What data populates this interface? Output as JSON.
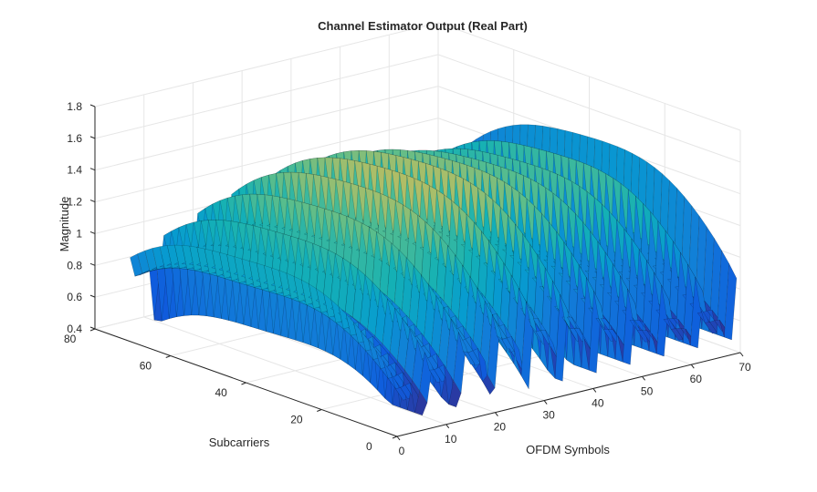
{
  "chart_data": {
    "type": "surface",
    "title": "Channel Estimator Output (Real Part)",
    "xlabel": "OFDM Symbols",
    "ylabel": "Subcarriers",
    "zlabel": "Magnitude",
    "xlim": [
      0,
      70
    ],
    "ylim": [
      0,
      80
    ],
    "zlim": [
      0.4,
      1.8
    ],
    "xticks": [
      0,
      10,
      20,
      30,
      40,
      50,
      60,
      70
    ],
    "yticks": [
      0,
      20,
      40,
      60,
      80
    ],
    "zticks": [
      0.4,
      0.6,
      0.8,
      1,
      1.2,
      1.4,
      1.6,
      1.8
    ],
    "xtick_labels": [
      "0",
      "10",
      "20",
      "30",
      "40",
      "50",
      "60",
      "70"
    ],
    "ytick_labels": [
      "0",
      "20",
      "40",
      "60",
      "80"
    ],
    "ztick_labels": [
      "0.4",
      "0.6",
      "0.8",
      "1",
      "1.2",
      "1.4",
      "1.6",
      "1.8"
    ],
    "grid": true,
    "colormap": "parula",
    "grid_size": {
      "symbols": 70,
      "subcarriers": 72
    },
    "pilot_period_symbols": 7,
    "pilot_period_subcarriers": 6,
    "surface_range": {
      "min": 0.48,
      "max": 1.62
    },
    "colors": {
      "axis": "#262626",
      "grid": "#e6e6e6",
      "edge": "#000000"
    }
  }
}
